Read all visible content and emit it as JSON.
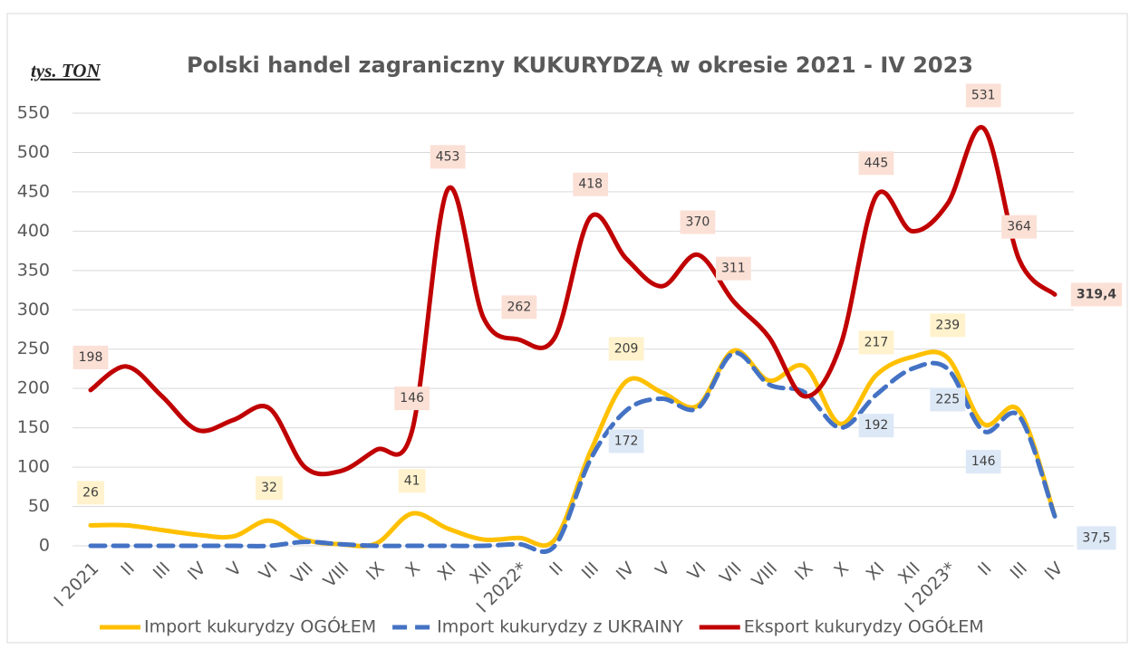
{
  "chart_data": {
    "type": "line",
    "title": "Polski handel zagraniczny KUKURYDZĄ w okresie 2021 - IV 2023",
    "y_axis_label": "tys. TON",
    "categories": [
      "I 2021",
      "II",
      "III",
      "IV",
      "V",
      "VI",
      "VII",
      "VIII",
      "IX",
      "X",
      "XI",
      "XII",
      "I 2022*",
      "II",
      "III",
      "IV",
      "V",
      "VI",
      "VII",
      "VIII",
      "IX",
      "X",
      "XI",
      "XII",
      "I 2023*",
      "II",
      "III",
      "IV"
    ],
    "series": [
      {
        "name": "Import kukurydzy OGÓŁEM",
        "color": "#FFC000",
        "dash": false,
        "values": [
          26,
          26,
          20,
          14,
          12,
          32,
          8,
          2,
          3,
          41,
          22,
          8,
          10,
          8,
          120,
          209,
          195,
          178,
          248,
          210,
          228,
          155,
          217,
          240,
          239,
          155,
          172,
          38
        ],
        "value_labels": [
          "26",
          null,
          null,
          null,
          null,
          "32",
          null,
          null,
          null,
          "41",
          null,
          null,
          null,
          null,
          null,
          "209",
          null,
          null,
          null,
          null,
          null,
          null,
          "217",
          null,
          "239",
          null,
          null,
          null
        ]
      },
      {
        "name": "Import kukurydzy z UKRAINY",
        "color": "#4472C4",
        "dash": true,
        "values": [
          0,
          0,
          0,
          0,
          0,
          0,
          5,
          2,
          0,
          0,
          0,
          0,
          2,
          0,
          110,
          172,
          187,
          175,
          245,
          205,
          195,
          150,
          192,
          225,
          225,
          146,
          165,
          37.5
        ],
        "value_labels": [
          null,
          null,
          null,
          null,
          null,
          null,
          null,
          null,
          null,
          null,
          null,
          null,
          null,
          null,
          null,
          "172",
          null,
          null,
          null,
          null,
          null,
          null,
          "192",
          null,
          "225",
          "146",
          null,
          "37,5"
        ]
      },
      {
        "name": "Eksport kukurydzy OGÓŁEM",
        "color": "#C00000",
        "dash": false,
        "values": [
          198,
          228,
          190,
          147,
          160,
          175,
          100,
          95,
          122,
          146,
          453,
          290,
          262,
          265,
          418,
          365,
          330,
          370,
          311,
          265,
          190,
          255,
          445,
          400,
          435,
          531,
          364,
          319.4
        ],
        "value_labels": [
          "198",
          null,
          null,
          null,
          null,
          null,
          null,
          null,
          null,
          "146",
          "453",
          null,
          "262",
          null,
          "418",
          null,
          null,
          "370",
          "311",
          null,
          null,
          null,
          "445",
          null,
          null,
          "531",
          "364",
          "319,4"
        ]
      }
    ],
    "ylim": [
      0,
      550
    ],
    "yticks": [
      0,
      50,
      100,
      150,
      200,
      250,
      300,
      350,
      400,
      450,
      500,
      550
    ],
    "grid": true,
    "legend": "bottom"
  }
}
